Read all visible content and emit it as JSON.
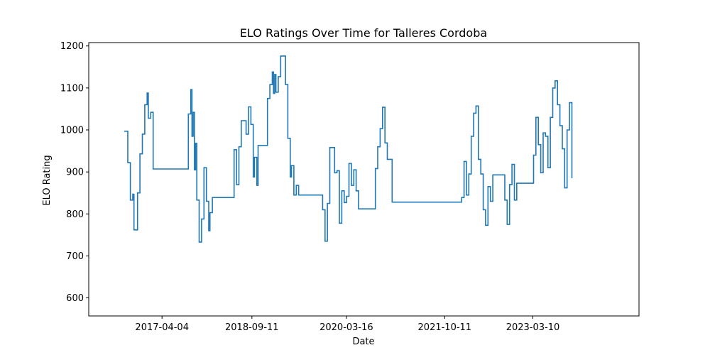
{
  "chart_data": {
    "type": "line",
    "title": "ELO Ratings Over Time for Talleres Cordoba",
    "xlabel": "Date",
    "ylabel": "ELO Rating",
    "x_tick_labels": [
      "2017-04-04",
      "2018-09-11",
      "2020-03-16",
      "2021-10-11",
      "2023-03-10"
    ],
    "x_tick_dates": [
      "2017-04-04",
      "2018-09-11",
      "2020-03-16",
      "2021-10-11",
      "2023-03-10"
    ],
    "y_ticks": [
      600,
      700,
      800,
      900,
      1000,
      1100,
      1200
    ],
    "xlim": [
      "2016-02-01",
      "2024-11-19"
    ],
    "ylim": [
      557,
      1208
    ],
    "grid": false,
    "line_style": "steps",
    "series": [
      {
        "color": "#1f77b4",
        "points": [
          [
            "2016-08-26",
            997
          ],
          [
            "2016-09-16",
            922
          ],
          [
            "2016-10-01",
            833
          ],
          [
            "2016-10-15",
            847
          ],
          [
            "2016-10-22",
            762
          ],
          [
            "2016-11-12",
            850
          ],
          [
            "2016-11-26",
            943
          ],
          [
            "2016-12-10",
            990
          ],
          [
            "2016-12-24",
            1060
          ],
          [
            "2017-01-07",
            1088
          ],
          [
            "2017-01-14",
            1028
          ],
          [
            "2017-01-28",
            1042
          ],
          [
            "2017-02-11",
            907
          ],
          [
            "2017-09-05",
            1038
          ],
          [
            "2017-09-19",
            1096
          ],
          [
            "2017-09-26",
            985
          ],
          [
            "2017-10-03",
            1042
          ],
          [
            "2017-10-10",
            905
          ],
          [
            "2017-10-17",
            968
          ],
          [
            "2017-10-24",
            833
          ],
          [
            "2017-11-07",
            733
          ],
          [
            "2017-11-21",
            788
          ],
          [
            "2017-12-05",
            910
          ],
          [
            "2017-12-19",
            830
          ],
          [
            "2018-01-02",
            760
          ],
          [
            "2018-01-09",
            803
          ],
          [
            "2018-01-23",
            839
          ],
          [
            "2018-05-30",
            953
          ],
          [
            "2018-06-13",
            870
          ],
          [
            "2018-06-27",
            960
          ],
          [
            "2018-07-11",
            1022
          ],
          [
            "2018-08-08",
            990
          ],
          [
            "2018-08-22",
            1055
          ],
          [
            "2018-09-05",
            1013
          ],
          [
            "2018-09-19",
            888
          ],
          [
            "2018-09-26",
            935
          ],
          [
            "2018-10-10",
            868
          ],
          [
            "2018-10-17",
            963
          ],
          [
            "2018-12-11",
            1075
          ],
          [
            "2018-12-25",
            1108
          ],
          [
            "2019-01-08",
            1138
          ],
          [
            "2019-01-15",
            1087
          ],
          [
            "2019-01-22",
            1132
          ],
          [
            "2019-01-29",
            1090
          ],
          [
            "2019-02-12",
            1127
          ],
          [
            "2019-02-26",
            1176
          ],
          [
            "2019-03-26",
            1108
          ],
          [
            "2019-04-09",
            980
          ],
          [
            "2019-04-23",
            888
          ],
          [
            "2019-04-30",
            915
          ],
          [
            "2019-05-14",
            845
          ],
          [
            "2019-05-28",
            868
          ],
          [
            "2019-06-11",
            845
          ],
          [
            "2019-10-29",
            810
          ],
          [
            "2019-11-12",
            735
          ],
          [
            "2019-11-26",
            825
          ],
          [
            "2019-12-10",
            958
          ],
          [
            "2020-01-07",
            898
          ],
          [
            "2020-01-21",
            903
          ],
          [
            "2020-02-04",
            778
          ],
          [
            "2020-02-18",
            855
          ],
          [
            "2020-03-03",
            827
          ],
          [
            "2020-03-17",
            842
          ],
          [
            "2020-03-31",
            920
          ],
          [
            "2020-04-14",
            868
          ],
          [
            "2020-04-28",
            905
          ],
          [
            "2020-05-12",
            855
          ],
          [
            "2020-05-26",
            812
          ],
          [
            "2020-09-01",
            908
          ],
          [
            "2020-09-15",
            960
          ],
          [
            "2020-09-29",
            1003
          ],
          [
            "2020-10-13",
            1054
          ],
          [
            "2020-10-27",
            969
          ],
          [
            "2020-11-10",
            930
          ],
          [
            "2020-12-08",
            828
          ],
          [
            "2022-01-18",
            839
          ],
          [
            "2022-02-01",
            925
          ],
          [
            "2022-02-15",
            845
          ],
          [
            "2022-03-01",
            895
          ],
          [
            "2022-03-15",
            985
          ],
          [
            "2022-03-29",
            1040
          ],
          [
            "2022-04-12",
            1057
          ],
          [
            "2022-04-26",
            930
          ],
          [
            "2022-05-10",
            895
          ],
          [
            "2022-05-24",
            810
          ],
          [
            "2022-06-07",
            773
          ],
          [
            "2022-06-21",
            865
          ],
          [
            "2022-07-05",
            830
          ],
          [
            "2022-07-19",
            893
          ],
          [
            "2022-09-27",
            833
          ],
          [
            "2022-10-11",
            775
          ],
          [
            "2022-10-25",
            870
          ],
          [
            "2022-11-08",
            918
          ],
          [
            "2022-11-22",
            833
          ],
          [
            "2022-12-06",
            873
          ],
          [
            "2023-03-14",
            940
          ],
          [
            "2023-03-28",
            1030
          ],
          [
            "2023-04-11",
            965
          ],
          [
            "2023-04-25",
            898
          ],
          [
            "2023-05-09",
            993
          ],
          [
            "2023-05-23",
            985
          ],
          [
            "2023-06-06",
            910
          ],
          [
            "2023-06-20",
            1030
          ],
          [
            "2023-07-04",
            1100
          ],
          [
            "2023-07-18",
            1117
          ],
          [
            "2023-08-01",
            1060
          ],
          [
            "2023-08-15",
            1010
          ],
          [
            "2023-08-29",
            955
          ],
          [
            "2023-09-12",
            862
          ],
          [
            "2023-09-26",
            1000
          ],
          [
            "2023-10-10",
            1065
          ],
          [
            "2023-10-24",
            885
          ]
        ]
      }
    ]
  }
}
